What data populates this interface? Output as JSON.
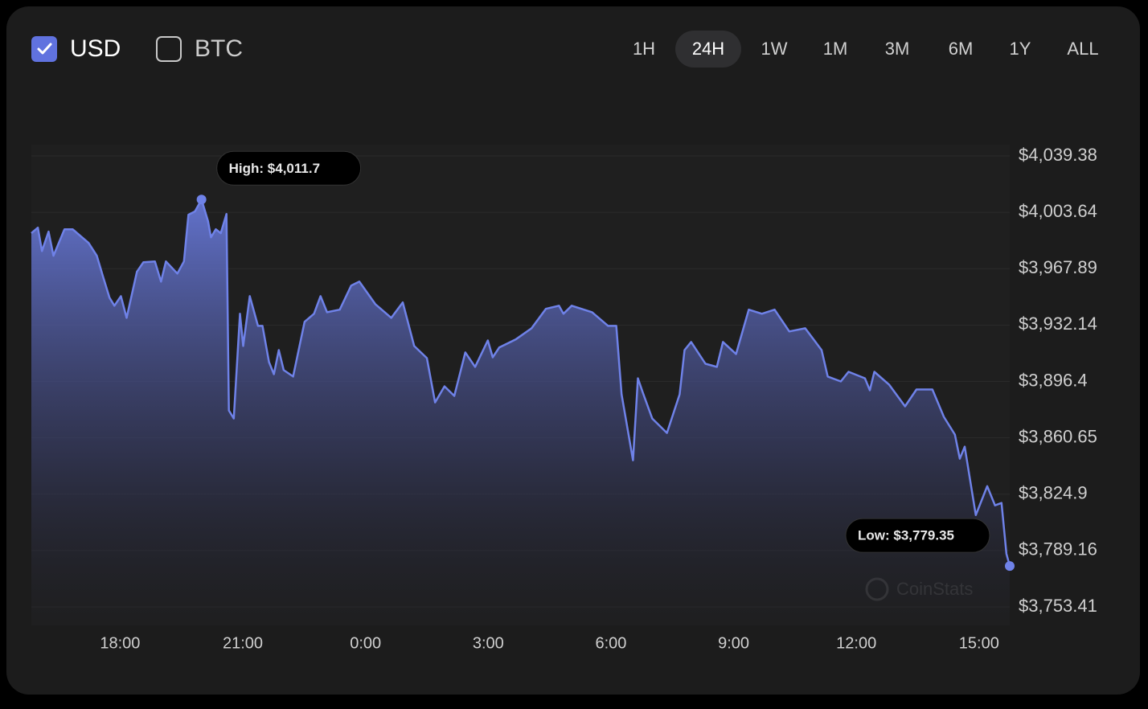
{
  "controls": {
    "currencies": [
      {
        "label": "USD",
        "checked": true
      },
      {
        "label": "BTC",
        "checked": false
      }
    ],
    "ranges": [
      {
        "label": "1H",
        "selected": false
      },
      {
        "label": "24H",
        "selected": true
      },
      {
        "label": "1W",
        "selected": false
      },
      {
        "label": "1M",
        "selected": false
      },
      {
        "label": "3M",
        "selected": false
      },
      {
        "label": "6M",
        "selected": false
      },
      {
        "label": "1Y",
        "selected": false
      },
      {
        "label": "ALL",
        "selected": false
      }
    ]
  },
  "chart_data": {
    "type": "area",
    "x": [
      15.83,
      15.99,
      16.09,
      16.25,
      16.37,
      16.64,
      16.84,
      17.23,
      17.43,
      17.59,
      17.74,
      17.86,
      18.02,
      18.16,
      18.41,
      18.57,
      18.85,
      19.0,
      19.12,
      19.4,
      19.56,
      19.67,
      19.83,
      19.99,
      20.15,
      20.22,
      20.34,
      20.46,
      20.6,
      20.66,
      20.78,
      20.93,
      21.01,
      21.17,
      21.37,
      21.48,
      21.64,
      21.76,
      21.88,
      22.0,
      22.23,
      22.51,
      22.74,
      22.9,
      23.06,
      23.37,
      23.65,
      23.85,
      24.24,
      24.63,
      24.91,
      25.19,
      25.5,
      25.7,
      25.93,
      26.17,
      26.44,
      26.68,
      26.99,
      27.11,
      27.27,
      27.67,
      28.06,
      28.41,
      28.73,
      28.84,
      29.04,
      29.54,
      29.93,
      30.13,
      30.26,
      30.54,
      30.66,
      30.78,
      31.01,
      31.37,
      31.68,
      31.8,
      31.96,
      32.31,
      32.59,
      32.74,
      33.06,
      33.37,
      33.69,
      34.0,
      34.36,
      34.75,
      35.15,
      35.3,
      35.62,
      35.81,
      36.21,
      36.33,
      36.44,
      36.8,
      37.19,
      37.47,
      37.86,
      38.14,
      38.41,
      38.53,
      38.65,
      38.92,
      39.2,
      39.39,
      39.55,
      39.67,
      39.75
    ],
    "values": [
      3990.4,
      3993.9,
      3979.1,
      3991.4,
      3976.1,
      3992.9,
      3992.9,
      3984.2,
      3976.1,
      3962.3,
      3949.5,
      3944.4,
      3950.5,
      3936.7,
      3965.9,
      3972.0,
      3972.5,
      3959.7,
      3972.5,
      3964.8,
      3972.5,
      4002.1,
      4004.2,
      4011.7,
      3998.0,
      3987.8,
      3992.9,
      3990.4,
      4002.6,
      3878.0,
      3872.9,
      3939.3,
      3918.9,
      3950.5,
      3931.6,
      3931.6,
      3908.7,
      3901.0,
      3916.3,
      3903.6,
      3899.5,
      3934.2,
      3939.3,
      3950.5,
      3940.3,
      3941.9,
      3957.2,
      3959.7,
      3945.4,
      3936.7,
      3946.5,
      3918.9,
      3911.2,
      3883.1,
      3893.3,
      3887.2,
      3914.8,
      3905.6,
      3922.4,
      3911.7,
      3917.9,
      3923.0,
      3930.1,
      3942.4,
      3944.4,
      3939.3,
      3944.4,
      3940.3,
      3931.6,
      3931.6,
      3888.2,
      3846.4,
      3898.4,
      3889.3,
      3872.9,
      3863.7,
      3888.2,
      3916.3,
      3921.4,
      3907.6,
      3905.6,
      3921.4,
      3913.8,
      3941.9,
      3939.3,
      3941.9,
      3928.1,
      3930.1,
      3916.3,
      3899.5,
      3896.4,
      3902.5,
      3898.4,
      3890.8,
      3902.5,
      3894.4,
      3880.6,
      3891.3,
      3891.3,
      3873.9,
      3862.7,
      3847.4,
      3855.0,
      3811.6,
      3830.0,
      3817.8,
      3819.3,
      3787.1,
      3779.35
    ],
    "color": "#6f82e8",
    "xlim": [
      15.83,
      39.75
    ],
    "xticks": [
      {
        "value": 18,
        "label": "18:00"
      },
      {
        "value": 21,
        "label": "21:00"
      },
      {
        "value": 24,
        "label": "0:00"
      },
      {
        "value": 27,
        "label": "3:00"
      },
      {
        "value": 30,
        "label": "6:00"
      },
      {
        "value": 33,
        "label": "9:00"
      },
      {
        "value": 36,
        "label": "12:00"
      },
      {
        "value": 39,
        "label": "15:00"
      }
    ],
    "ylim": [
      3753.41,
      4039.38
    ],
    "yticks": [
      {
        "value": 4039.38,
        "label": "$4,039.38"
      },
      {
        "value": 4003.64,
        "label": "$4,003.64"
      },
      {
        "value": 3967.89,
        "label": "$3,967.89"
      },
      {
        "value": 3932.14,
        "label": "$3,932.14"
      },
      {
        "value": 3896.4,
        "label": "$3,896.4"
      },
      {
        "value": 3860.65,
        "label": "$3,860.65"
      },
      {
        "value": 3824.9,
        "label": "$3,824.9"
      },
      {
        "value": 3789.16,
        "label": "$3,789.16"
      },
      {
        "value": 3753.41,
        "label": "$3,753.41"
      }
    ],
    "grid": true,
    "annotations": [
      {
        "text": "High: $4,011.7",
        "x": 19.99,
        "y": 4011.7
      },
      {
        "text": "Low: $3,779.35",
        "x": 39.75,
        "y": 3779.35
      }
    ],
    "watermark": "CoinStats"
  }
}
